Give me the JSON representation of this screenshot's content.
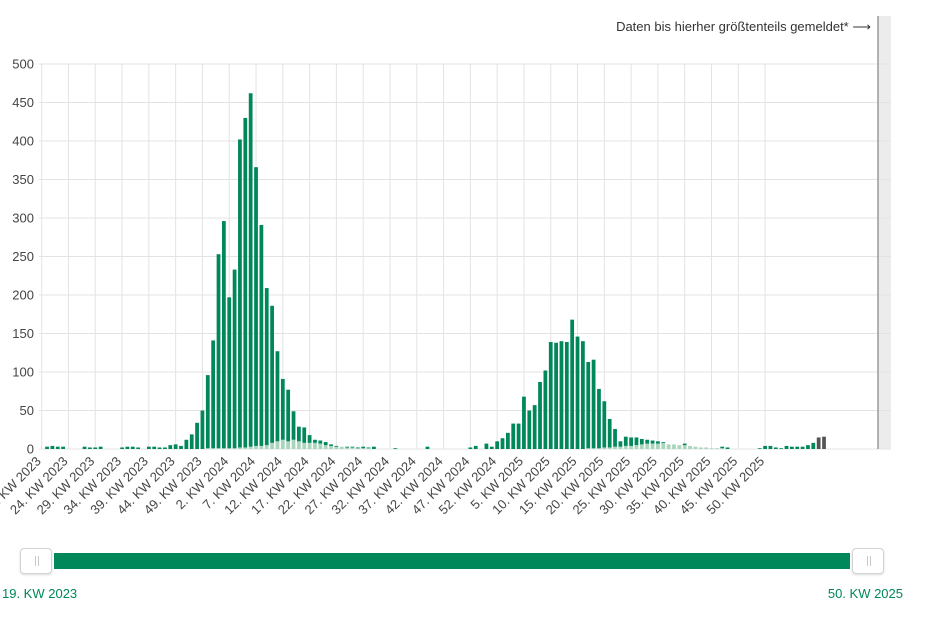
{
  "annotation": "Daten bis hierher größtenteils gemeldet* ⟶",
  "range": {
    "start_label": "19. KW 2023",
    "end_label": "50. KW 2025"
  },
  "colors": {
    "primary": "#00875a",
    "secondary": "#a8d5bc",
    "incomplete": "#555555",
    "shade": "#e8e8e8",
    "grid": "#e3e3e3",
    "marker": "#999999"
  },
  "chart_data": {
    "type": "bar",
    "stacked": true,
    "ylim": [
      0,
      500
    ],
    "yticks": [
      0,
      50,
      100,
      150,
      200,
      250,
      300,
      350,
      400,
      450,
      500
    ],
    "grid": true,
    "x_tick_labels": [
      "19. KW 2023",
      "24. KW 2023",
      "29. KW 2023",
      "34. KW 2023",
      "39. KW 2023",
      "44. KW 2023",
      "49. KW 2023",
      "2. KW 2024",
      "7. KW 2024",
      "12. KW 2024",
      "17. KW 2024",
      "22. KW 2024",
      "27. KW 2024",
      "32. KW 2024",
      "37. KW 2024",
      "42. KW 2024",
      "47. KW 2024",
      "52. KW 2024",
      "5. KW 2025",
      "10. KW 2025",
      "15. KW 2025",
      "20. KW 2025",
      "25. KW 2025",
      "30. KW 2025",
      "35. KW 2025",
      "40. KW 2025",
      "45. KW 2025",
      "50. KW 2025"
    ],
    "tick_every": 5,
    "incomplete_last": 2,
    "series": [
      {
        "values": [
          0,
          0,
          0,
          0,
          0,
          0,
          0,
          0,
          0,
          0,
          0,
          0,
          0,
          0,
          0,
          0,
          0,
          0,
          0,
          0,
          0,
          0,
          0,
          0,
          0,
          0,
          0,
          0,
          0,
          0,
          0,
          1,
          1,
          1,
          1,
          1,
          1,
          2,
          2,
          3,
          4,
          4,
          5,
          8,
          10,
          12,
          10,
          12,
          10,
          8,
          8,
          8,
          7,
          5,
          4,
          3,
          3,
          2,
          2,
          1,
          1,
          1,
          0,
          0,
          0,
          0,
          0,
          0,
          0,
          0,
          0,
          0,
          0,
          0,
          0,
          0,
          0,
          0,
          0,
          0,
          0,
          0,
          0,
          0,
          0,
          0,
          0,
          0,
          0,
          0,
          0,
          0,
          0,
          0,
          0,
          0,
          0,
          0,
          0,
          0,
          0,
          0,
          1,
          1,
          1,
          2,
          2,
          3,
          3,
          4,
          4,
          5,
          6,
          7,
          7,
          7,
          8,
          6,
          6,
          5,
          5,
          4,
          3,
          2,
          2,
          1,
          1,
          1,
          0,
          0,
          0,
          0,
          0,
          0,
          0,
          0,
          0,
          0,
          0,
          0,
          0,
          0,
          0,
          0,
          0,
          0,
          0,
          0,
          0,
          0,
          0,
          0,
          0,
          0,
          0,
          0,
          0,
          0,
          0
        ]
      },
      {
        "values": [
          0,
          3,
          4,
          3,
          3,
          0,
          0,
          0,
          3,
          2,
          2,
          3,
          0,
          0,
          0,
          2,
          3,
          3,
          2,
          0,
          3,
          3,
          2,
          2,
          5,
          6,
          4,
          12,
          19,
          34,
          50,
          95,
          140,
          252,
          295,
          196,
          232,
          400,
          428,
          459,
          362,
          287,
          204,
          178,
          117,
          79,
          67,
          37,
          19,
          20,
          10,
          4,
          4,
          4,
          2,
          1,
          0,
          1,
          1,
          1,
          2,
          1,
          3,
          0,
          0,
          0,
          1,
          0,
          0,
          0,
          0,
          0,
          3,
          0,
          0,
          0,
          0,
          0,
          0,
          0,
          2,
          4,
          0,
          7,
          3,
          10,
          14,
          21,
          33,
          33,
          68,
          50,
          57,
          87,
          102,
          139,
          138,
          140,
          139,
          168,
          146,
          140,
          112,
          115,
          77,
          60,
          37,
          23,
          7,
          12,
          11,
          10,
          7,
          5,
          4,
          3,
          1,
          0,
          0,
          0,
          2,
          0,
          0,
          0,
          0,
          0,
          0,
          2,
          2,
          0,
          0,
          0,
          0,
          0,
          1,
          4,
          4,
          2,
          1,
          4,
          3,
          3,
          3,
          5,
          8,
          0,
          0
        ]
      },
      {
        "values": [
          0,
          0,
          0,
          0,
          0,
          0,
          0,
          0,
          0,
          0,
          0,
          0,
          0,
          0,
          0,
          0,
          0,
          0,
          0,
          0,
          0,
          0,
          0,
          0,
          0,
          0,
          0,
          0,
          0,
          0,
          0,
          0,
          0,
          0,
          0,
          0,
          0,
          0,
          0,
          0,
          0,
          0,
          0,
          0,
          0,
          0,
          0,
          0,
          0,
          0,
          0,
          0,
          0,
          0,
          0,
          0,
          0,
          0,
          0,
          0,
          0,
          0,
          0,
          0,
          0,
          0,
          0,
          0,
          0,
          0,
          0,
          0,
          0,
          0,
          0,
          0,
          0,
          0,
          0,
          0,
          0,
          0,
          0,
          0,
          0,
          0,
          0,
          0,
          0,
          0,
          0,
          0,
          0,
          0,
          0,
          0,
          0,
          0,
          0,
          0,
          0,
          0,
          0,
          0,
          0,
          0,
          0,
          0,
          0,
          0,
          0,
          0,
          0,
          0,
          0,
          0,
          0,
          0,
          0,
          0,
          0,
          0,
          0,
          0,
          0,
          0,
          0,
          0,
          0,
          0,
          0,
          0,
          0,
          0,
          0,
          0,
          0,
          0,
          0,
          0,
          0,
          0,
          0,
          0,
          0,
          15,
          16
        ]
      }
    ]
  }
}
